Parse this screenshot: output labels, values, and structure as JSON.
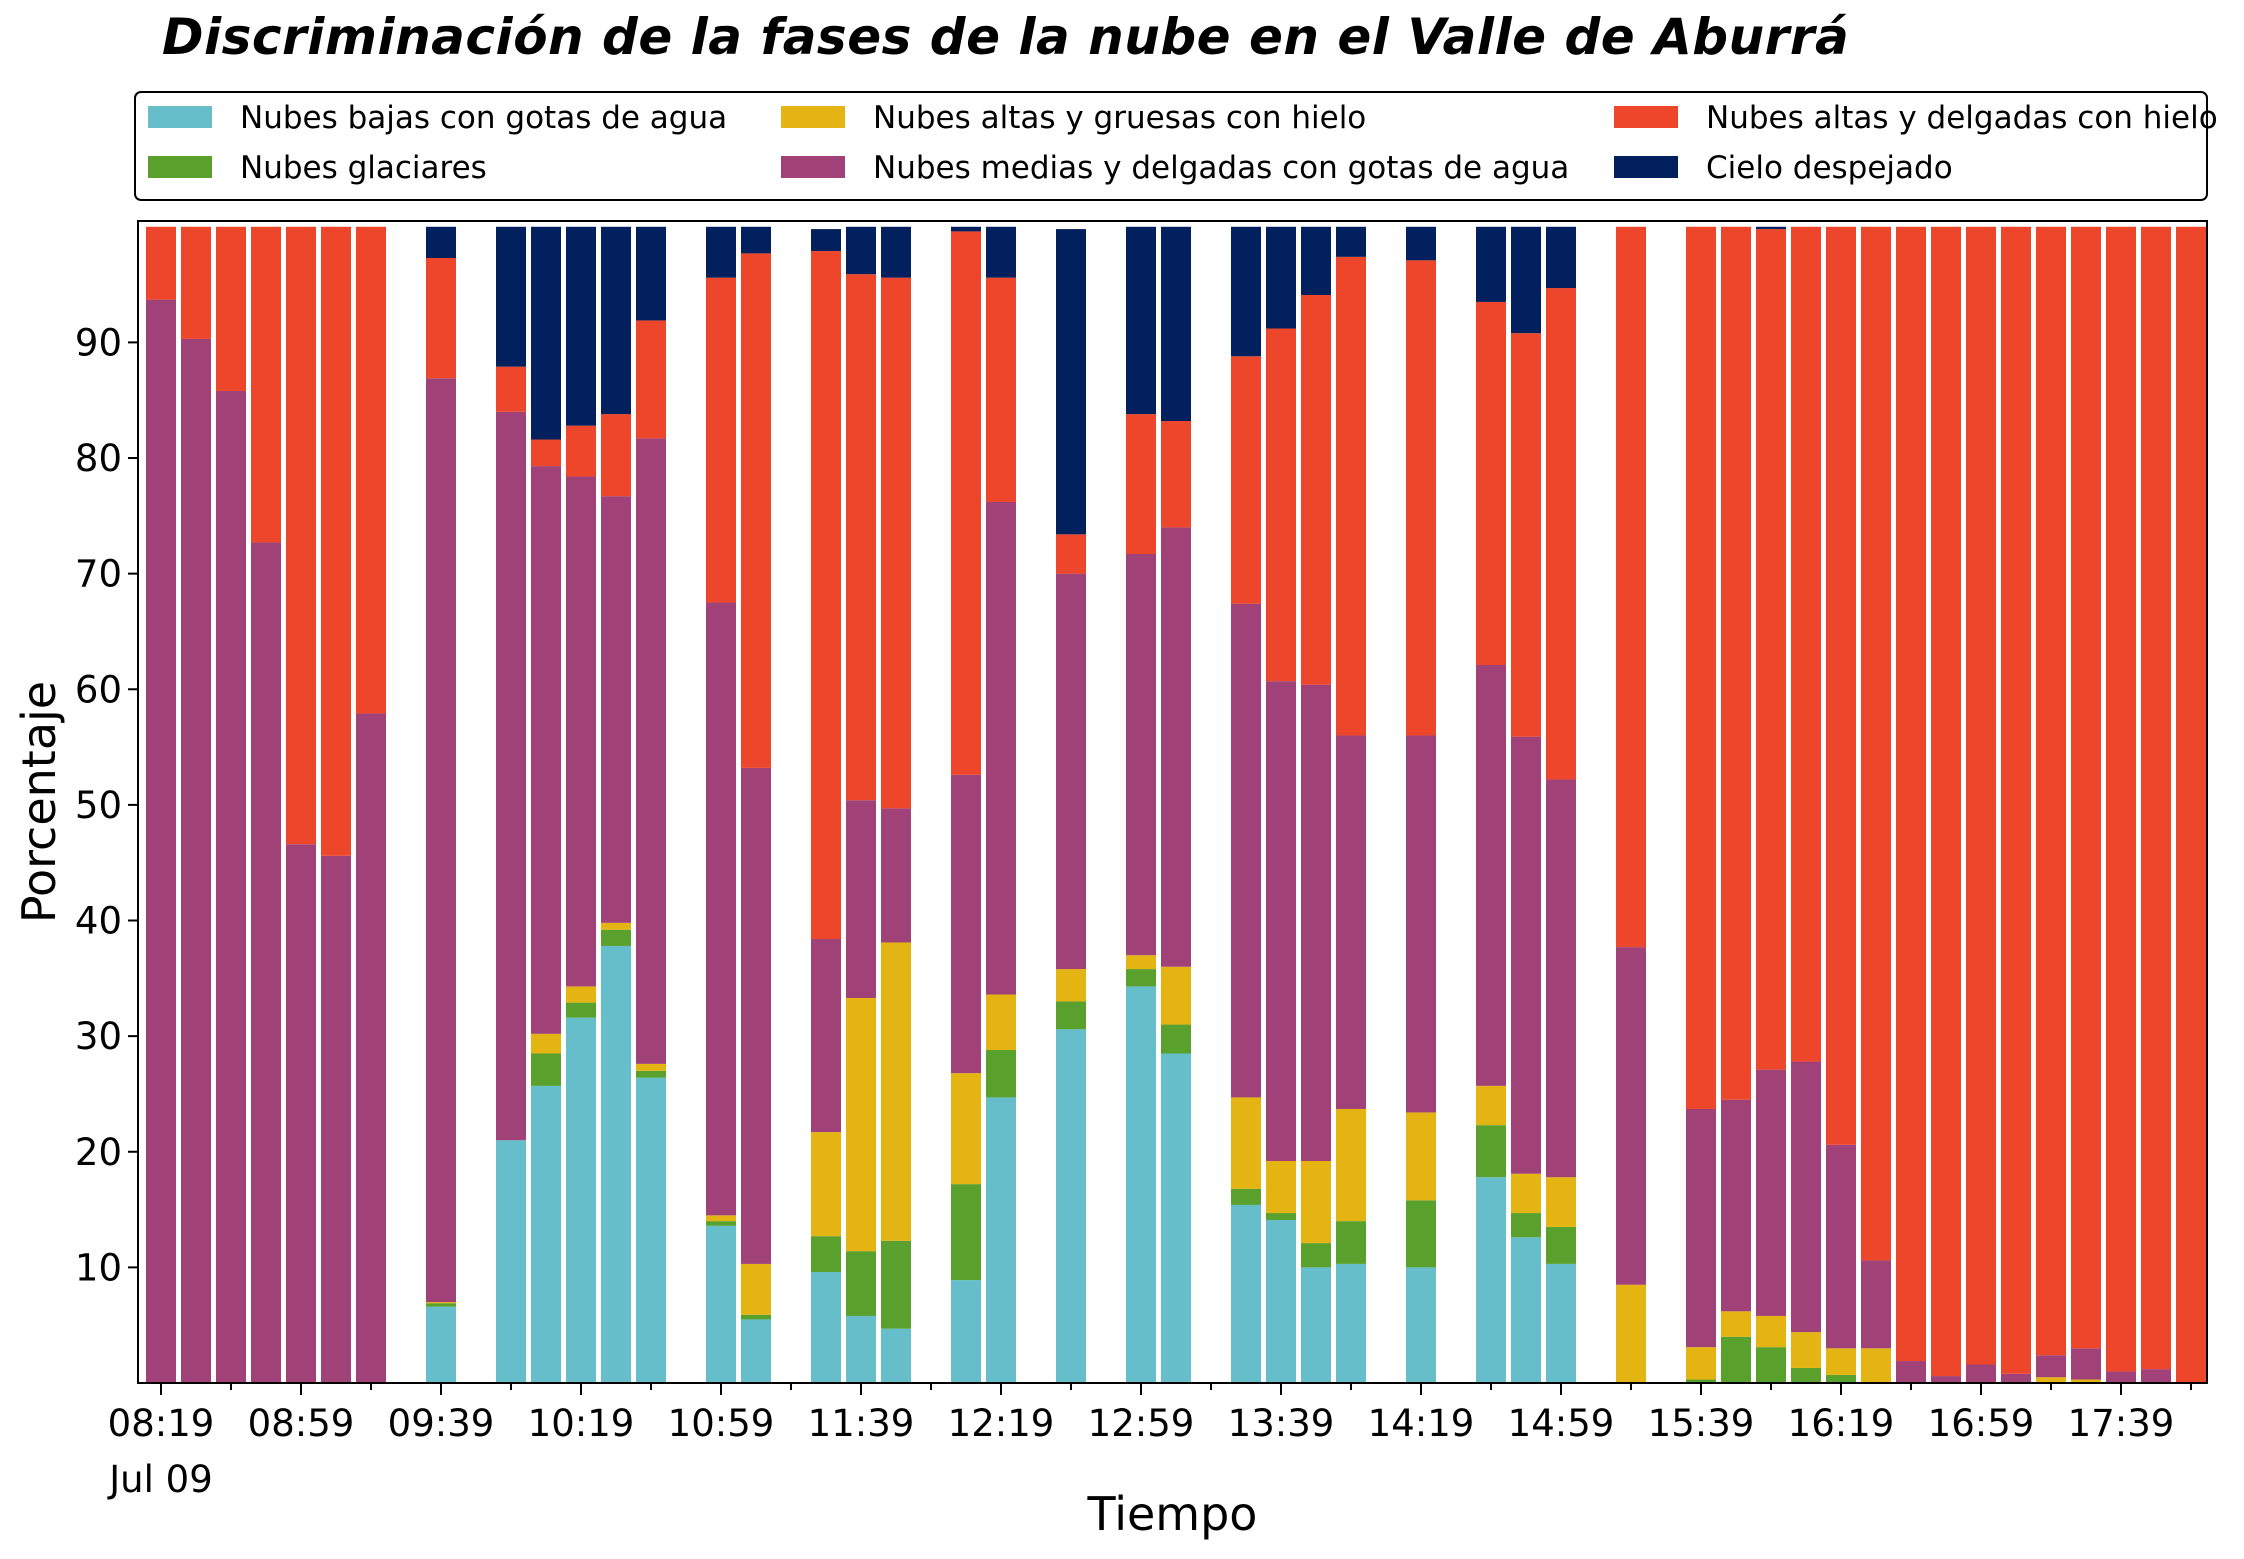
{
  "chart_data": {
    "type": "bar",
    "stacked": true,
    "title": "Discriminación de la fases de la nube en el Valle de Aburrá",
    "xlabel": "Tiempo",
    "ylabel": "Porcentaje",
    "ylim": [
      0,
      100
    ],
    "yticks": [
      10,
      20,
      30,
      40,
      50,
      60,
      70,
      80,
      90
    ],
    "legend_position": "top",
    "x_date_label": "Jul 09",
    "x_ticks": [
      "08:19",
      "08:59",
      "09:39",
      "10:19",
      "10:59",
      "11:39",
      "12:19",
      "12:59",
      "13:39",
      "14:19",
      "14:59",
      "15:39",
      "16:19",
      "16:59",
      "17:39"
    ],
    "x_start_minutes": 499,
    "x_interval_minutes": 10,
    "x_tick_every": 4,
    "series": [
      {
        "name": "Nubes bajas con gotas de agua",
        "color": "#66BECA",
        "values": [
          0,
          0,
          0,
          0,
          0,
          0,
          0,
          null,
          6.6,
          null,
          21,
          25.7,
          31.6,
          37.8,
          26.4,
          null,
          13.6,
          5.5,
          null,
          9.6,
          5.8,
          4.7,
          null,
          8.9,
          24.7,
          null,
          30.6,
          null,
          34.3,
          28.5,
          null,
          15.4,
          14.1,
          10,
          10.3,
          null,
          10,
          null,
          17.8,
          12.6,
          10.3,
          null,
          0,
          null,
          0,
          0,
          0,
          0,
          0,
          0,
          0,
          0,
          0,
          0,
          0,
          0,
          0,
          0,
          0
        ]
      },
      {
        "name": "Nubes glaciares",
        "color": "#5AA02C",
        "values": [
          0,
          0,
          0,
          0,
          0,
          0,
          0,
          null,
          0.3,
          null,
          0,
          2.8,
          1.3,
          1.4,
          0.6,
          null,
          0.4,
          0.4,
          null,
          3.1,
          5.6,
          7.6,
          null,
          8.3,
          4.1,
          null,
          2.4,
          null,
          1.5,
          2.5,
          null,
          1.4,
          0.6,
          2.1,
          3.7,
          null,
          5.8,
          null,
          4.5,
          2.1,
          3.2,
          null,
          0,
          null,
          0.3,
          4,
          3.1,
          1.3,
          0.7,
          0,
          0,
          0,
          0,
          0,
          0,
          0,
          0,
          0,
          0
        ]
      },
      {
        "name": "Nubes altas y gruesas con hielo",
        "color": "#E4B412",
        "values": [
          0,
          0,
          0,
          0,
          0,
          0,
          0,
          null,
          0.1,
          null,
          0,
          1.7,
          1.4,
          0.6,
          0.6,
          null,
          0.5,
          4.4,
          null,
          9,
          21.9,
          25.8,
          null,
          9.6,
          4.8,
          null,
          2.8,
          null,
          1.2,
          5,
          null,
          7.9,
          4.5,
          7.1,
          9.7,
          null,
          7.6,
          null,
          3.4,
          3.4,
          4.3,
          null,
          8.5,
          null,
          2.8,
          2.2,
          2.7,
          3.1,
          2.3,
          3,
          0,
          0,
          0,
          0,
          0.5,
          0.3,
          0,
          0,
          0
        ]
      },
      {
        "name": "Nubes medias y delgadas con gotas de agua",
        "color": "#A04277",
        "values": [
          93.7,
          90.3,
          85.8,
          72.7,
          46.6,
          45.6,
          57.9,
          null,
          79.9,
          null,
          63,
          49.1,
          44.1,
          36.9,
          54.1,
          null,
          53,
          42.9,
          null,
          16.7,
          17.1,
          11.6,
          null,
          25.8,
          42.6,
          null,
          34.2,
          null,
          34.7,
          38,
          null,
          42.7,
          41.5,
          41.2,
          32.3,
          null,
          32.6,
          null,
          36.4,
          37.8,
          34.4,
          null,
          29.2,
          null,
          20.6,
          18.3,
          21.3,
          23.4,
          17.6,
          7.6,
          1.9,
          0.6,
          1.6,
          0.8,
          1.9,
          2.7,
          1,
          1.2,
          0
        ]
      },
      {
        "name": "Nubes altas y delgadas con hielo",
        "color": "#EE462A",
        "values": [
          6.3,
          9.7,
          14.2,
          27.3,
          53.4,
          54.4,
          42.1,
          null,
          10.4,
          null,
          3.9,
          2.3,
          4.4,
          7.1,
          10.2,
          null,
          28.1,
          44.5,
          null,
          59.5,
          45.5,
          45.9,
          null,
          47,
          19.4,
          null,
          3.4,
          null,
          12.1,
          9.2,
          null,
          21.4,
          30.5,
          33.7,
          41.4,
          null,
          41.1,
          null,
          31.4,
          34.9,
          42.5,
          null,
          62.3,
          null,
          76.3,
          75.5,
          72.7,
          72.2,
          79.4,
          89.4,
          98.1,
          99.4,
          98.4,
          99.2,
          97.6,
          97,
          99,
          98.8,
          100
        ]
      },
      {
        "name": "Cielo despejado",
        "color": "#021F5E",
        "values": [
          0,
          0,
          0,
          0,
          0,
          0,
          0,
          null,
          2.7,
          null,
          12.1,
          18.4,
          17.2,
          16.2,
          8.1,
          null,
          4.4,
          2.3,
          null,
          1.9,
          4.1,
          4.4,
          null,
          0.4,
          4.4,
          null,
          26.4,
          null,
          16.2,
          16.8,
          null,
          11.2,
          8.8,
          5.9,
          2.6,
          null,
          2.9,
          null,
          6.5,
          9.2,
          5.3,
          null,
          0,
          null,
          0,
          0,
          0.2,
          0,
          0,
          0,
          0,
          0,
          0,
          0,
          0,
          0,
          0,
          0,
          0
        ]
      }
    ]
  }
}
